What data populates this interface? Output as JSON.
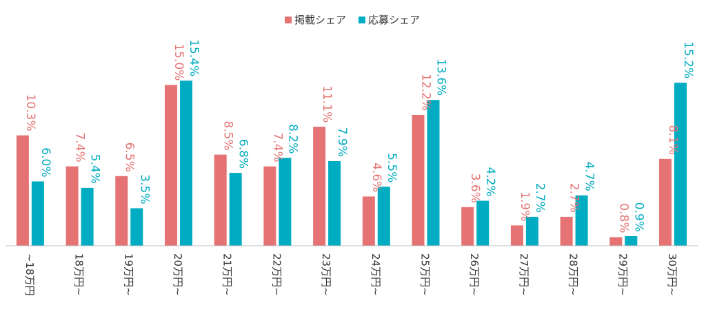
{
  "chart_data": {
    "type": "bar",
    "categories": [
      "~18万円",
      "18万円~",
      "19万円~",
      "20万円~",
      "21万円~",
      "22万円~",
      "23万円~",
      "24万円~",
      "25万円~",
      "26万円~",
      "27万円~",
      "28万円~",
      "29万円~",
      "30万円~"
    ],
    "series": [
      {
        "name": "掲載シェア",
        "color": "#E57373",
        "values": [
          10.3,
          7.4,
          6.5,
          15.0,
          8.5,
          7.4,
          11.1,
          4.6,
          12.2,
          3.6,
          1.9,
          2.7,
          0.8,
          8.1
        ],
        "labels": [
          "10.3%",
          "7.4%",
          "6.5%",
          "15.0%",
          "8.5%",
          "7.4%",
          "11.1%",
          "4.6%",
          "12.2%",
          "3.6%",
          "1.9%",
          "2.7%",
          "0.8%",
          "8.1%"
        ]
      },
      {
        "name": "応募シェア",
        "color": "#00ACC1",
        "values": [
          6.0,
          5.4,
          3.5,
          15.4,
          6.8,
          8.2,
          7.9,
          5.5,
          13.6,
          4.2,
          2.7,
          4.7,
          0.9,
          15.2
        ],
        "labels": [
          "6.0%",
          "5.4%",
          "3.5%",
          "15.4%",
          "6.8%",
          "8.2%",
          "7.9%",
          "5.5%",
          "13.6%",
          "4.2%",
          "2.7%",
          "4.7%",
          "0.9%",
          "15.2%"
        ]
      }
    ],
    "ylim": [
      0,
      16.5
    ],
    "grid": false,
    "legend_position": "top-center",
    "axis_color": "#BFBFBF"
  }
}
